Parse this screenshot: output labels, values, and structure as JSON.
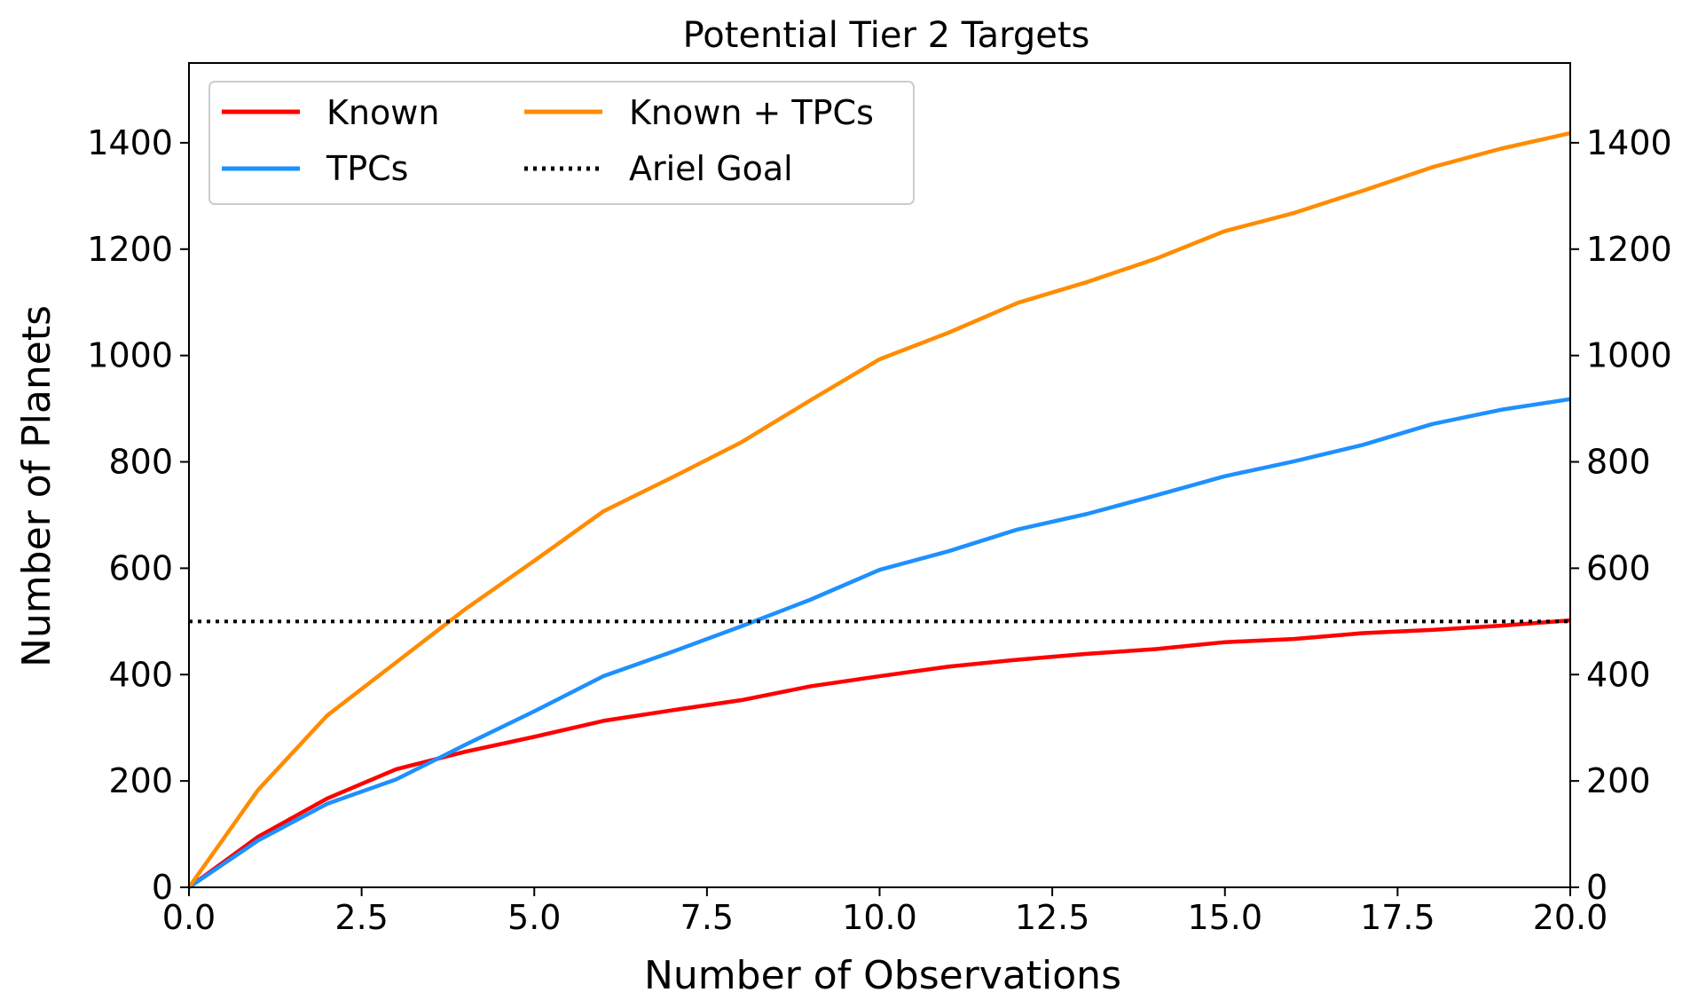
{
  "chart_data": {
    "type": "line",
    "title": "Potential Tier 2 Targets",
    "xlabel": "Number of Observations",
    "ylabel": "Number of Planets",
    "xlim": [
      0,
      20
    ],
    "ylim": [
      0,
      1550
    ],
    "x_ticks": [
      0.0,
      2.5,
      5.0,
      7.5,
      10.0,
      12.5,
      15.0,
      17.5,
      20.0
    ],
    "x_tick_labels": [
      "0.0",
      "2.5",
      "5.0",
      "7.5",
      "10.0",
      "12.5",
      "15.0",
      "17.5",
      "20.0"
    ],
    "y_ticks": [
      0,
      200,
      400,
      600,
      800,
      1000,
      1200,
      1400
    ],
    "y_tick_labels": [
      "0",
      "200",
      "400",
      "600",
      "800",
      "1000",
      "1200",
      "1400"
    ],
    "right_axis_ticks": true,
    "grid": false,
    "legend_position": "top-left",
    "legend_columns": 2,
    "x": [
      0,
      1,
      2,
      3,
      4,
      5,
      6,
      7,
      8,
      9,
      10,
      11,
      12,
      13,
      14,
      15,
      16,
      17,
      18,
      19,
      20
    ],
    "series": [
      {
        "name": "Known",
        "color": "#ff0000",
        "style": "solid",
        "values": [
          0,
          95,
          167,
          222,
          255,
          283,
          313,
          333,
          352,
          378,
          397,
          415,
          428,
          439,
          448,
          461,
          467,
          478,
          484,
          492,
          502
        ]
      },
      {
        "name": "TPCs",
        "color": "#1e90ff",
        "style": "solid",
        "values": [
          0,
          88,
          157,
          203,
          268,
          331,
          397,
          443,
          491,
          541,
          597,
          632,
          673,
          702,
          737,
          773,
          801,
          832,
          871,
          898,
          918
        ]
      },
      {
        "name": "Known + TPCs",
        "color": "#ff8c00",
        "style": "solid",
        "values": [
          0,
          183,
          323,
          423,
          523,
          614,
          707,
          771,
          837,
          916,
          993,
          1043,
          1099,
          1138,
          1182,
          1234,
          1268,
          1310,
          1354,
          1389,
          1418
        ]
      },
      {
        "name": "Ariel Goal",
        "color": "#000000",
        "style": "dotted",
        "constant": 500
      }
    ]
  }
}
